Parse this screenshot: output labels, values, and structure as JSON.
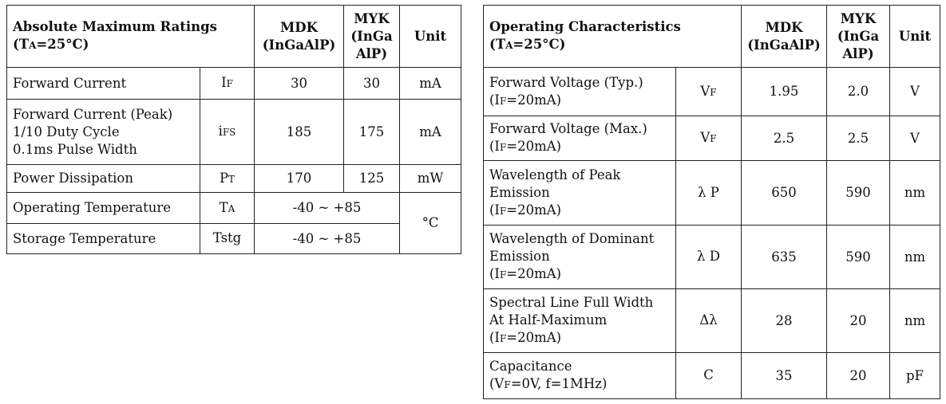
{
  "abs_table": {
    "header": {
      "title": "Absolute Maximum Ratings",
      "cond": {
        "main": "T",
        "sub": "A",
        "rest": "=25°C)",
        "open": "("
      },
      "mdk": "MDK\n(InGaAlP)",
      "myk": "MYK\n(InGa\nAlP)",
      "unit": "Unit"
    },
    "rows": [
      {
        "param": "Forward Current",
        "sym_main": "I",
        "sym_sub": "F",
        "mdk": "30",
        "myk": "30",
        "unit": "mA"
      },
      {
        "param": "Forward Current (Peak)\n1/10 Duty Cycle\n0.1ms Pulse Width",
        "sym_main": "i",
        "sym_sub": "FS",
        "mdk": "185",
        "myk": "175",
        "unit": "mA"
      },
      {
        "param": "Power Dissipation",
        "sym_main": "P",
        "sym_sub": "T",
        "mdk": "170",
        "myk": "125",
        "unit": "mW"
      },
      {
        "param": "Operating Temperature",
        "sym_main": "T",
        "sym_sub": "A",
        "range": "-40 ~ +85"
      },
      {
        "param": "Storage Temperature",
        "sym_main": "Tstg",
        "sym_sub": "",
        "range": "-40 ~ +85"
      }
    ],
    "temp_unit": "°C"
  },
  "op_table": {
    "header": {
      "title": "Operating Characteristics",
      "cond": {
        "open": "(",
        "main": "T",
        "sub": "A",
        "rest": "=25°C)"
      },
      "mdk": "MDK\n(InGaAlP)",
      "myk": "MYK\n(InGa\nAlP)",
      "unit": "Unit"
    },
    "rows": [
      {
        "param": "Forward Voltage (Typ.)",
        "cond_pre": "(I",
        "cond_sub": "F",
        "cond_post": "=20mA)",
        "sym_main": "V",
        "sym_sub": "F",
        "mdk": "1.95",
        "myk": "2.0",
        "unit": "V"
      },
      {
        "param": "Forward Voltage (Max.)",
        "cond_pre": "(I",
        "cond_sub": "F",
        "cond_post": "=20mA)",
        "sym_main": "V",
        "sym_sub": "F",
        "mdk": "2.5",
        "myk": "2.5",
        "unit": "V"
      },
      {
        "param": "Wavelength of Peak\nEmission",
        "cond_pre": "(I",
        "cond_sub": "F",
        "cond_post": "=20mA)",
        "sym_main": "λ P",
        "sym_sub": "",
        "mdk": "650",
        "myk": "590",
        "unit": "nm"
      },
      {
        "param": "Wavelength of Dominant\nEmission",
        "cond_pre": "(I",
        "cond_sub": "F",
        "cond_post": "=20mA)",
        "sym_main": "λ D",
        "sym_sub": "",
        "mdk": "635",
        "myk": "590",
        "unit": "nm"
      },
      {
        "param": "Spectral Line Full Width\nAt Half-Maximum",
        "cond_pre": "(I",
        "cond_sub": "F",
        "cond_post": "=20mA)",
        "sym_main": "Δλ",
        "sym_sub": "",
        "mdk": "28",
        "myk": "20",
        "unit": "nm"
      },
      {
        "param": "Capacitance",
        "cond_pre": "(V",
        "cond_sub": "F",
        "cond_post": "=0V, f=1MHz)",
        "sym_main": "C",
        "sym_sub": "",
        "mdk": "35",
        "myk": "20",
        "unit": "pF"
      }
    ]
  }
}
